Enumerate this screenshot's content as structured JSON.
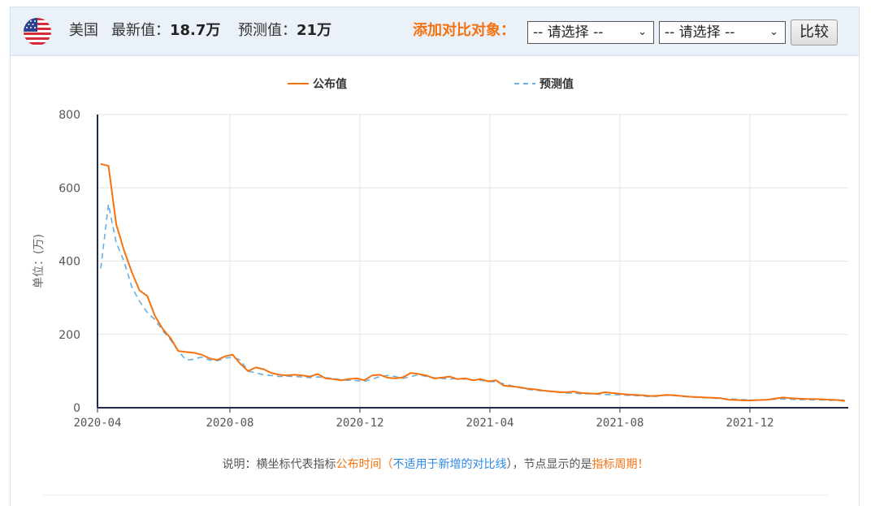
{
  "header": {
    "country": "美国",
    "latest_label": "最新值：",
    "latest_value": "18.7万",
    "forecast_label": "预测值：",
    "forecast_value": "21万",
    "compare_label": "添加对比对象：",
    "select1_value": "-- 请选择 --",
    "select2_value": "-- 请选择 --",
    "compare_button": "比较",
    "flag_icon": "us-flag-icon"
  },
  "colors": {
    "actual": "#f5720f",
    "forecast": "#6aaee0",
    "accent": "#f5720f",
    "link": "#2e8ae6"
  },
  "note": {
    "prefix": "说明：横坐标代表指标",
    "pub_time": "公布时间",
    "paren_open": "（",
    "not_apply": "不适用于新增的对比线",
    "paren_close": "），节点显示的是",
    "period": "指标周期！"
  },
  "chart_data": {
    "type": "line",
    "ylabel": "单位：(万)",
    "ylim": [
      0,
      800
    ],
    "yticks": [
      0,
      200,
      400,
      600,
      800
    ],
    "xticks": [
      "2020-04",
      "2020-08",
      "2020-12",
      "2021-04",
      "2021-08",
      "2021-12"
    ],
    "x_range": [
      "2020-04",
      "2022-03"
    ],
    "legend": [
      "公布值",
      "预测值"
    ],
    "legend_position": "top-center",
    "grid": true,
    "series": [
      {
        "name": "公布值",
        "style": "solid",
        "values": [
          665,
          660,
          500,
          430,
          370,
          320,
          305,
          250,
          215,
          190,
          155,
          152,
          150,
          145,
          135,
          130,
          140,
          145,
          120,
          100,
          110,
          105,
          95,
          90,
          88,
          90,
          88,
          85,
          92,
          80,
          78,
          75,
          78,
          80,
          75,
          88,
          90,
          82,
          80,
          83,
          95,
          92,
          88,
          80,
          82,
          85,
          78,
          80,
          75,
          78,
          72,
          75,
          60,
          58,
          56,
          52,
          50,
          47,
          45,
          43,
          42,
          44,
          40,
          39,
          38,
          42,
          40,
          38,
          36,
          35,
          34,
          32,
          33,
          35,
          34,
          32,
          30,
          29,
          28,
          27,
          26,
          22,
          21,
          20,
          20,
          21,
          22,
          25,
          28,
          26,
          25,
          24,
          24,
          23,
          22,
          21,
          18.7
        ]
      },
      {
        "name": "预测值",
        "style": "dashed",
        "values": [
          380,
          555,
          450,
          400,
          330,
          290,
          260,
          240,
          210,
          185,
          155,
          130,
          132,
          138,
          130,
          128,
          135,
          138,
          130,
          100,
          95,
          90,
          88,
          85,
          86,
          85,
          84,
          82,
          84,
          82,
          80,
          76,
          75,
          74,
          72,
          78,
          85,
          88,
          85,
          80,
          85,
          90,
          85,
          82,
          80,
          78,
          80,
          78,
          76,
          75,
          72,
          70,
          65,
          60,
          55,
          50,
          48,
          46,
          44,
          42,
          40,
          40,
          38,
          38,
          37,
          36,
          36,
          35,
          34,
          33,
          32,
          30,
          32,
          34,
          33,
          31,
          30,
          28,
          27,
          26,
          25,
          24,
          23,
          22,
          21,
          21,
          22,
          23,
          24,
          23,
          22,
          22,
          21,
          21,
          20,
          21,
          21
        ]
      }
    ]
  }
}
